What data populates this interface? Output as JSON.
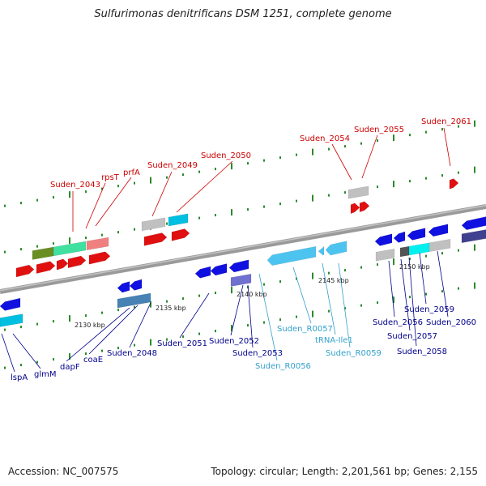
{
  "title": "Sulfurimonas denitrificans DSM 1251, complete genome",
  "footer": {
    "accession_label": "Accession:",
    "accession": "NC_007575",
    "topology_text": "Topology: circular; Length: 2,201,561 bp; Genes: 2,155"
  },
  "colors": {
    "backbone": "#8c8c8c",
    "label_top": "#cc0000",
    "label_bottom": "#00008b",
    "label_rna": "#33a0cc",
    "tick": "#2a8a2a"
  },
  "scale_ticks": [
    {
      "text": "2130 kbp"
    },
    {
      "text": "2135 kbp"
    },
    {
      "text": "2140 kbp"
    },
    {
      "text": "2145 kbp"
    },
    {
      "text": "2150 kbp"
    }
  ],
  "top_labels": [
    {
      "text": "Suden_2043"
    },
    {
      "text": "rpsT"
    },
    {
      "text": "prfA"
    },
    {
      "text": "Suden_2049"
    },
    {
      "text": "Suden_2050"
    },
    {
      "text": "Suden_2054"
    },
    {
      "text": "Suden_2055"
    },
    {
      "text": "Suden_2061"
    }
  ],
  "bottom_labels": [
    {
      "text": "lspA"
    },
    {
      "text": "glmM"
    },
    {
      "text": "dapF"
    },
    {
      "text": "coaE"
    },
    {
      "text": "Suden_2048"
    },
    {
      "text": "Suden_2051"
    },
    {
      "text": "Suden_2052"
    },
    {
      "text": "Suden_2053"
    },
    {
      "text": "Suden_R0056"
    },
    {
      "text": "Suden_R0057"
    },
    {
      "text": "tRNA-Ile1"
    },
    {
      "text": "Suden_R0059"
    },
    {
      "text": "Suden_2056"
    },
    {
      "text": "Suden_2057"
    },
    {
      "text": "Suden_2058"
    },
    {
      "text": "Suden_2059"
    },
    {
      "text": "Suden_2060"
    }
  ]
}
